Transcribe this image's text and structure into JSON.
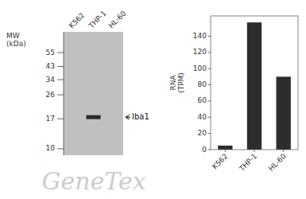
{
  "chart_data": [
    {
      "type": "blot",
      "y_label": "MW\n(kDa)",
      "categories": [
        "K562",
        "THP-1",
        "HL-60"
      ],
      "values": [
        null,
        17.5,
        null
      ],
      "color": "#2a2a2a",
      "log": "y",
      "ylim": [
        8.912509381337456,
        79.43282347242814
      ],
      "yticks": [
        55,
        43,
        34,
        26,
        17,
        10
      ],
      "annotations": [
        "Iba1",
        "GeneTex"
      ]
    },
    {
      "type": "bar",
      "y_label": "RNA\n(TPM)",
      "categories": [
        "K562",
        "THP-1",
        "HL-60"
      ],
      "values": [
        5,
        157,
        90
      ],
      "color": "#2d2d2d",
      "ylim": [
        0,
        165
      ],
      "yticks": [
        0,
        20,
        40,
        60,
        80,
        100,
        120,
        140
      ],
      "grid": false
    }
  ]
}
